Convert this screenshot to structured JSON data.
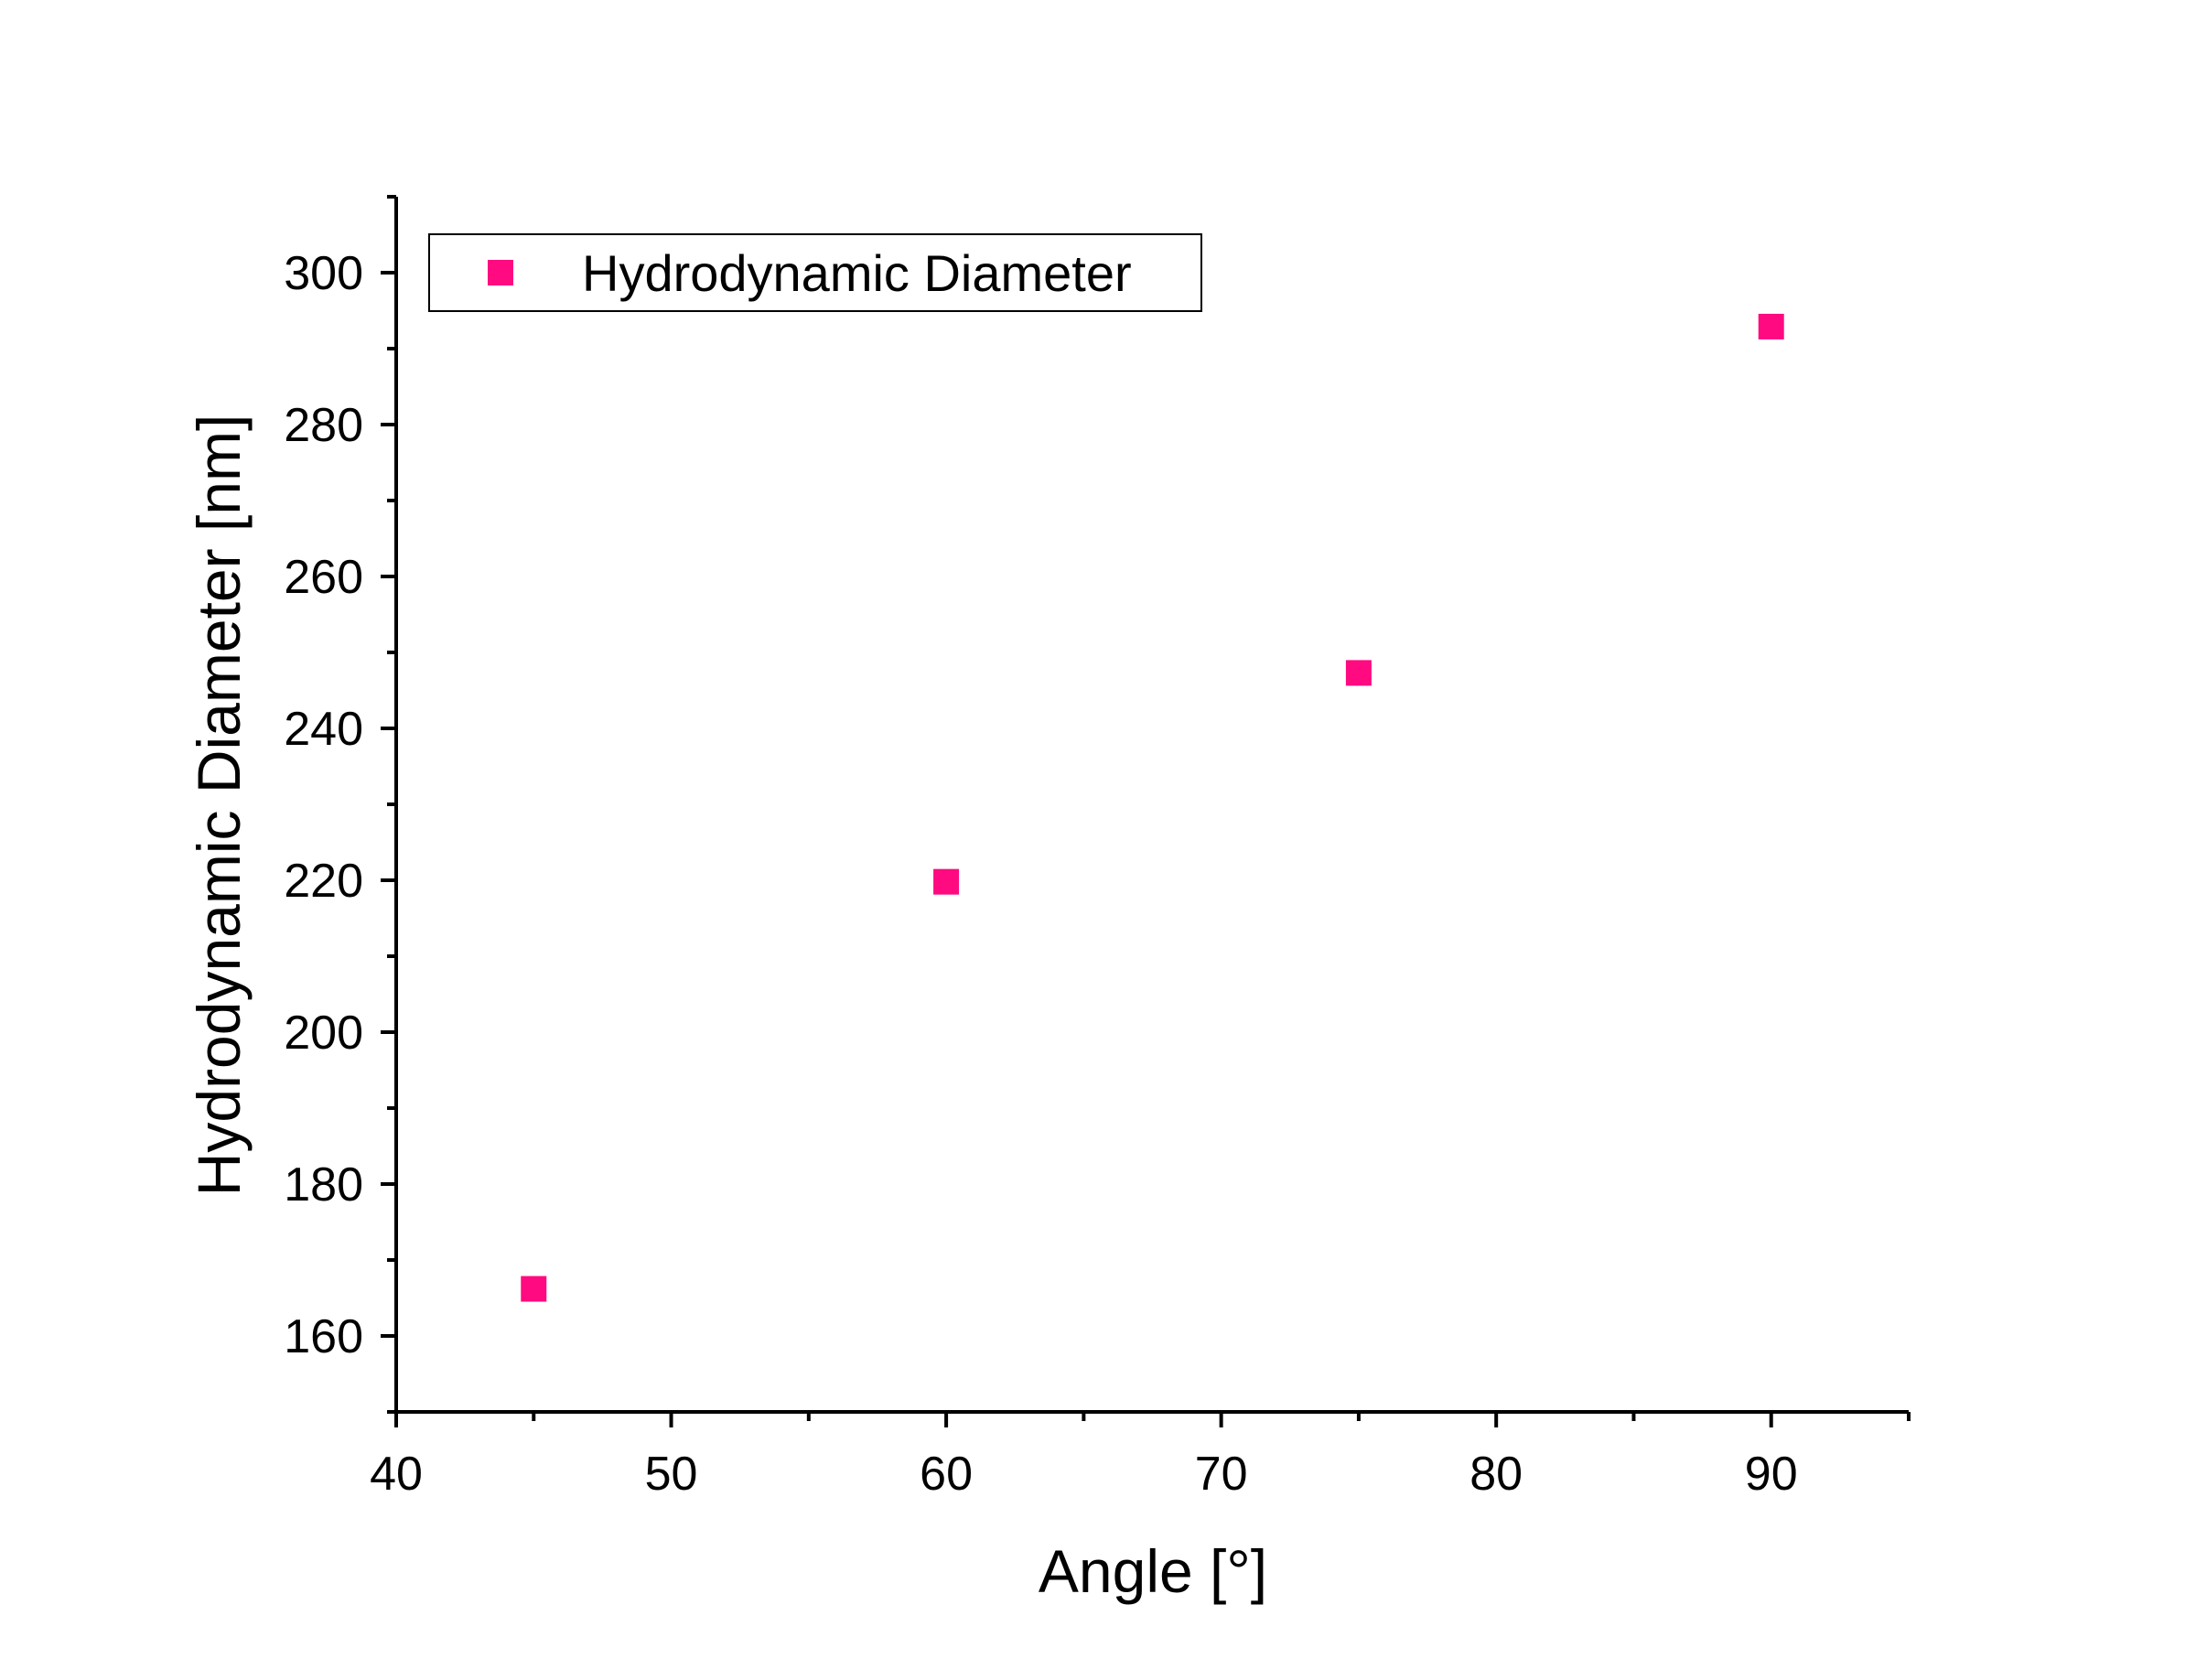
{
  "chart_data": {
    "type": "scatter",
    "title": "",
    "xlabel": "Angle [°]",
    "ylabel": "Hydrodynamic Diameter [nm]",
    "xlim": [
      40,
      95
    ],
    "ylim": [
      150,
      310
    ],
    "x_ticks": [
      40,
      50,
      60,
      70,
      80,
      90
    ],
    "x_minor_ticks": [
      45,
      55,
      65,
      75,
      85,
      95
    ],
    "y_ticks": [
      160,
      180,
      200,
      220,
      240,
      260,
      280,
      300
    ],
    "y_minor_ticks": [
      150,
      170,
      190,
      210,
      230,
      250,
      270,
      290,
      310
    ],
    "legend_position": "top-left",
    "grid": false,
    "series": [
      {
        "name": "Hydrodynamic Diameter",
        "marker": "square",
        "color": "#ff0a80",
        "x": [
          45,
          60,
          75,
          90
        ],
        "y": [
          166.2,
          219.8,
          247.3,
          292.9
        ]
      }
    ]
  }
}
